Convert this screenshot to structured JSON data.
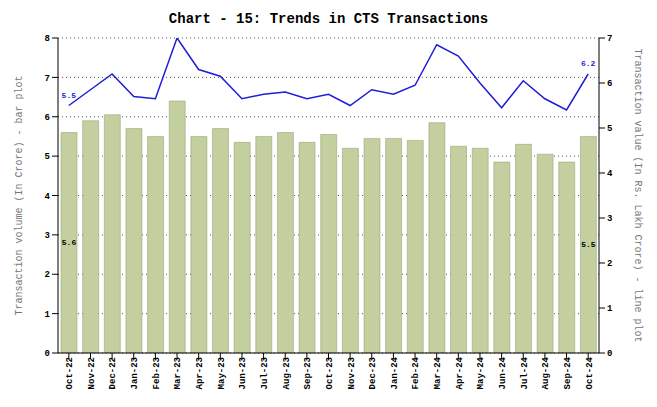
{
  "chart_data": {
    "type": "bar",
    "title": "Chart - 15: Trends in CTS Transactions",
    "categories": [
      "Oct-22",
      "Nov-22",
      "Dec-22",
      "Jan-23",
      "Feb-23",
      "Mar-23",
      "Apr-23",
      "May-23",
      "Jun-23",
      "Jul-23",
      "Aug-23",
      "Sep-23",
      "Oct-23",
      "Nov-23",
      "Dec-23",
      "Jan-24",
      "Feb-24",
      "Mar-24",
      "Apr-24",
      "May-24",
      "Jun-24",
      "Jul-24",
      "Aug-24",
      "Sep-24",
      "Oct-24"
    ],
    "ylabel": "Transaction volume (In Crore) - bar plot",
    "y2label": "Transaction value (In Rs. Lakh Crore) - line plot",
    "ylim": [
      0,
      8
    ],
    "yticks": [
      0,
      1,
      2,
      3,
      4,
      5,
      6,
      7,
      8
    ],
    "y2lim": [
      0,
      7
    ],
    "y2ticks": [
      0,
      1,
      2,
      3,
      4,
      5,
      6,
      7
    ],
    "grid": true,
    "data_labels": true,
    "series": [
      {
        "name": "Transaction volume",
        "type": "bar",
        "color": "#c3cf9e",
        "values": [
          5.6,
          5.9,
          6.05,
          5.7,
          5.5,
          6.4,
          5.5,
          5.7,
          5.35,
          5.5,
          5.6,
          5.35,
          5.55,
          5.2,
          5.45,
          5.45,
          5.4,
          5.85,
          5.25,
          5.2,
          4.85,
          5.3,
          5.05,
          4.85,
          5.5
        ],
        "value_labels": [
          "5.6",
          null,
          null,
          null,
          null,
          null,
          null,
          null,
          null,
          null,
          null,
          null,
          null,
          null,
          null,
          null,
          null,
          null,
          null,
          null,
          null,
          null,
          null,
          null,
          "5.5"
        ]
      },
      {
        "name": "Transaction value",
        "type": "line",
        "axis": "y2",
        "color": "#1f1fd6",
        "values": [
          5.5,
          5.85,
          6.2,
          5.7,
          5.65,
          7.0,
          6.3,
          6.15,
          5.65,
          5.75,
          5.8,
          5.65,
          5.75,
          5.5,
          5.85,
          5.75,
          5.95,
          6.85,
          6.6,
          6.0,
          5.45,
          6.05,
          5.65,
          5.4,
          6.2
        ],
        "value_labels": [
          "5.5",
          null,
          null,
          null,
          null,
          null,
          null,
          null,
          null,
          null,
          null,
          null,
          null,
          null,
          null,
          null,
          null,
          null,
          null,
          null,
          null,
          null,
          null,
          null,
          "6.2"
        ]
      }
    ]
  }
}
